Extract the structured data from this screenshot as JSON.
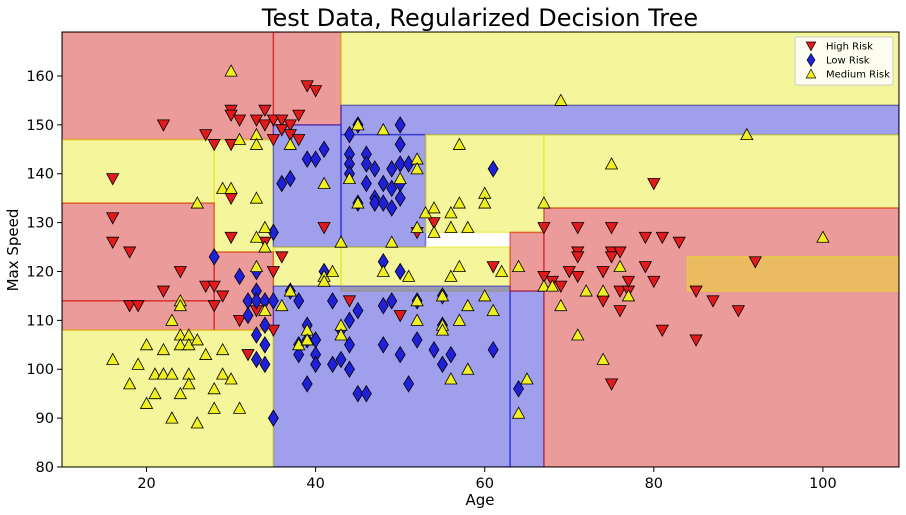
{
  "chart_data": {
    "type": "scatter",
    "title": "Test Data, Regularized Decision Tree",
    "xlabel": "Age",
    "ylabel": "Max Speed",
    "xlim": [
      10,
      109
    ],
    "ylim": [
      80,
      169
    ],
    "xticks": [
      20,
      40,
      60,
      80,
      100
    ],
    "yticks": [
      80,
      90,
      100,
      110,
      120,
      130,
      140,
      150,
      160
    ],
    "grid": false,
    "legend": {
      "position": "top-right"
    },
    "regions": [
      {
        "class": "High Risk",
        "x": [
          10,
          35
        ],
        "y": [
          147,
          169
        ]
      },
      {
        "class": "High Risk",
        "x": [
          35,
          43
        ],
        "y": [
          150,
          169
        ]
      },
      {
        "class": "Medium Risk",
        "x": [
          43,
          109
        ],
        "y": [
          154,
          169
        ]
      },
      {
        "class": "Low Risk",
        "x": [
          43,
          109
        ],
        "y": [
          148,
          154
        ]
      },
      {
        "class": "Medium Risk",
        "x": [
          10,
          28
        ],
        "y": [
          134,
          147
        ]
      },
      {
        "class": "Medium Risk",
        "x": [
          28,
          35
        ],
        "y": [
          124,
          147
        ]
      },
      {
        "class": "High Risk",
        "x": [
          10,
          28
        ],
        "y": [
          114,
          134
        ]
      },
      {
        "class": "Low Risk",
        "x": [
          35,
          43
        ],
        "y": [
          125,
          150
        ]
      },
      {
        "class": "Low Risk",
        "x": [
          43,
          53
        ],
        "y": [
          125,
          148
        ]
      },
      {
        "class": "Medium Risk",
        "x": [
          53,
          67
        ],
        "y": [
          128,
          148
        ]
      },
      {
        "class": "Medium Risk",
        "x": [
          67,
          109
        ],
        "y": [
          133,
          148
        ]
      },
      {
        "class": "Medium Risk",
        "x": [
          43,
          63
        ],
        "y": [
          116,
          125
        ]
      },
      {
        "class": "Medium Risk",
        "x": [
          35,
          43
        ],
        "y": [
          117,
          125
        ]
      },
      {
        "class": "High Risk",
        "x": [
          28,
          35
        ],
        "y": [
          108,
          124
        ]
      },
      {
        "class": "High Risk",
        "x": [
          10,
          28
        ],
        "y": [
          108,
          114
        ]
      },
      {
        "class": "Low Risk",
        "x": [
          35,
          63
        ],
        "y": [
          80,
          117
        ]
      },
      {
        "class": "Low Risk",
        "x": [
          63,
          67
        ],
        "y": [
          80,
          116
        ]
      },
      {
        "class": "High Risk",
        "x": [
          63,
          67
        ],
        "y": [
          116,
          128
        ]
      },
      {
        "class": "High Risk",
        "x": [
          67,
          109
        ],
        "y": [
          80,
          133
        ]
      },
      {
        "class": "Medium Risk",
        "x": [
          84,
          109
        ],
        "y": [
          116,
          123
        ]
      },
      {
        "class": "Medium Risk",
        "x": [
          10,
          35
        ],
        "y": [
          80,
          108
        ]
      }
    ],
    "series": [
      {
        "name": "High Risk",
        "marker": "triangle-down",
        "color": "#e31a1c",
        "points": [
          [
            16,
            139
          ],
          [
            16,
            131
          ],
          [
            16,
            126
          ],
          [
            18,
            124
          ],
          [
            18,
            113
          ],
          [
            19,
            113
          ],
          [
            22,
            150
          ],
          [
            22,
            116
          ],
          [
            24,
            120
          ],
          [
            27,
            148
          ],
          [
            27,
            117
          ],
          [
            28,
            117
          ],
          [
            28,
            146
          ],
          [
            28,
            113
          ],
          [
            29,
            115
          ],
          [
            30,
            153
          ],
          [
            30,
            152
          ],
          [
            30,
            146
          ],
          [
            30,
            135
          ],
          [
            30,
            127
          ],
          [
            31,
            151
          ],
          [
            31,
            110
          ],
          [
            32,
            103
          ],
          [
            33,
            151
          ],
          [
            33,
            112
          ],
          [
            34,
            153
          ],
          [
            34,
            150
          ],
          [
            34,
            126
          ],
          [
            35,
            151
          ],
          [
            35,
            147
          ],
          [
            35,
            120
          ],
          [
            35,
            108
          ],
          [
            36,
            151
          ],
          [
            36,
            149
          ],
          [
            36,
            123
          ],
          [
            37,
            150
          ],
          [
            37,
            148
          ],
          [
            38,
            147
          ],
          [
            38,
            152
          ],
          [
            39,
            158
          ],
          [
            40,
            157
          ],
          [
            41,
            129
          ],
          [
            44,
            114
          ],
          [
            50,
            111
          ],
          [
            52,
            128
          ],
          [
            54,
            130
          ],
          [
            61,
            121
          ],
          [
            67,
            129
          ],
          [
            67,
            119
          ],
          [
            68,
            118
          ],
          [
            69,
            117
          ],
          [
            70,
            120
          ],
          [
            71,
            129
          ],
          [
            71,
            124
          ],
          [
            71,
            123
          ],
          [
            71,
            119
          ],
          [
            74,
            114
          ],
          [
            74,
            120
          ],
          [
            75,
            129
          ],
          [
            75,
            124
          ],
          [
            75,
            123
          ],
          [
            75,
            97
          ],
          [
            76,
            124
          ],
          [
            76,
            116
          ],
          [
            76,
            112
          ],
          [
            77,
            116
          ],
          [
            77,
            118
          ],
          [
            79,
            127
          ],
          [
            79,
            121
          ],
          [
            80,
            138
          ],
          [
            80,
            118
          ],
          [
            81,
            127
          ],
          [
            81,
            108
          ],
          [
            83,
            126
          ],
          [
            85,
            116
          ],
          [
            85,
            106
          ],
          [
            87,
            114
          ],
          [
            90,
            112
          ],
          [
            92,
            122
          ]
        ]
      },
      {
        "name": "Low Risk",
        "marker": "diamond",
        "color": "#2020d8",
        "points": [
          [
            28,
            123
          ],
          [
            31,
            119
          ],
          [
            32,
            114
          ],
          [
            32,
            111
          ],
          [
            33,
            120
          ],
          [
            33,
            116
          ],
          [
            33,
            114
          ],
          [
            33,
            107
          ],
          [
            33,
            102
          ],
          [
            34,
            114
          ],
          [
            34,
            109
          ],
          [
            34,
            105
          ],
          [
            34,
            101
          ],
          [
            35,
            128
          ],
          [
            35,
            114
          ],
          [
            35,
            90
          ],
          [
            36,
            138
          ],
          [
            37,
            139
          ],
          [
            37,
            116
          ],
          [
            38,
            114
          ],
          [
            38,
            105
          ],
          [
            38,
            103
          ],
          [
            39,
            143
          ],
          [
            39,
            109
          ],
          [
            39,
            106
          ],
          [
            39,
            97
          ],
          [
            40,
            143
          ],
          [
            40,
            106
          ],
          [
            40,
            103
          ],
          [
            40,
            101
          ],
          [
            41,
            145
          ],
          [
            41,
            120
          ],
          [
            42,
            114
          ],
          [
            42,
            101
          ],
          [
            43,
            108
          ],
          [
            43,
            102
          ],
          [
            44,
            148
          ],
          [
            44,
            144
          ],
          [
            44,
            142
          ],
          [
            44,
            140
          ],
          [
            44,
            110
          ],
          [
            44,
            105
          ],
          [
            44,
            100
          ],
          [
            45,
            150
          ],
          [
            45,
            134
          ],
          [
            45,
            112
          ],
          [
            45,
            95
          ],
          [
            46,
            144
          ],
          [
            46,
            142
          ],
          [
            46,
            138
          ],
          [
            46,
            95
          ],
          [
            47,
            141
          ],
          [
            47,
            135
          ],
          [
            47,
            134
          ],
          [
            48,
            138
          ],
          [
            48,
            134
          ],
          [
            48,
            122
          ],
          [
            48,
            113
          ],
          [
            48,
            105
          ],
          [
            49,
            141
          ],
          [
            49,
            137
          ],
          [
            49,
            133
          ],
          [
            49,
            114
          ],
          [
            50,
            150
          ],
          [
            50,
            146
          ],
          [
            50,
            142
          ],
          [
            50,
            138
          ],
          [
            50,
            135
          ],
          [
            50,
            120
          ],
          [
            50,
            103
          ],
          [
            51,
            142
          ],
          [
            51,
            97
          ],
          [
            52,
            114
          ],
          [
            52,
            106
          ],
          [
            54,
            104
          ],
          [
            55,
            115
          ],
          [
            55,
            109
          ],
          [
            55,
            101
          ],
          [
            56,
            103
          ],
          [
            61,
            141
          ],
          [
            61,
            104
          ],
          [
            64,
            96
          ]
        ]
      },
      {
        "name": "Medium Risk",
        "marker": "triangle-up",
        "color": "#f0f020",
        "points": [
          [
            16,
            102
          ],
          [
            18,
            97
          ],
          [
            19,
            101
          ],
          [
            20,
            105
          ],
          [
            20,
            93
          ],
          [
            21,
            99
          ],
          [
            21,
            95
          ],
          [
            22,
            104
          ],
          [
            22,
            99
          ],
          [
            22,
            99
          ],
          [
            23,
            110
          ],
          [
            23,
            99
          ],
          [
            23,
            90
          ],
          [
            24,
            114
          ],
          [
            24,
            113
          ],
          [
            24,
            107
          ],
          [
            24,
            105
          ],
          [
            24,
            95
          ],
          [
            25,
            107
          ],
          [
            25,
            105
          ],
          [
            25,
            99
          ],
          [
            25,
            97
          ],
          [
            26,
            134
          ],
          [
            26,
            106
          ],
          [
            26,
            89
          ],
          [
            27,
            103
          ],
          [
            28,
            96
          ],
          [
            28,
            92
          ],
          [
            29,
            104
          ],
          [
            29,
            99
          ],
          [
            29,
            137
          ],
          [
            30,
            161
          ],
          [
            30,
            137
          ],
          [
            30,
            98
          ],
          [
            31,
            92
          ],
          [
            31,
            147
          ],
          [
            33,
            148
          ],
          [
            33,
            146
          ],
          [
            33,
            135
          ],
          [
            33,
            127
          ],
          [
            33,
            121
          ],
          [
            34,
            129
          ],
          [
            34,
            125
          ],
          [
            34,
            112
          ],
          [
            36,
            113
          ],
          [
            37,
            146
          ],
          [
            37,
            116
          ],
          [
            38,
            105
          ],
          [
            39,
            108
          ],
          [
            39,
            106
          ],
          [
            41,
            119
          ],
          [
            41,
            118
          ],
          [
            41,
            138
          ],
          [
            42,
            120
          ],
          [
            43,
            126
          ],
          [
            43,
            109
          ],
          [
            43,
            107
          ],
          [
            44,
            139
          ],
          [
            45,
            150
          ],
          [
            45,
            134
          ],
          [
            48,
            120
          ],
          [
            48,
            149
          ],
          [
            49,
            126
          ],
          [
            50,
            139
          ],
          [
            51,
            119
          ],
          [
            52,
            129
          ],
          [
            52,
            143
          ],
          [
            52,
            110
          ],
          [
            52,
            141
          ],
          [
            52,
            114
          ],
          [
            53,
            132
          ],
          [
            54,
            133
          ],
          [
            54,
            128
          ],
          [
            55,
            109
          ],
          [
            55,
            108
          ],
          [
            55,
            115
          ],
          [
            56,
            129
          ],
          [
            56,
            132
          ],
          [
            56,
            119
          ],
          [
            56,
            98
          ],
          [
            57,
            146
          ],
          [
            57,
            134
          ],
          [
            57,
            121
          ],
          [
            57,
            110
          ],
          [
            58,
            129
          ],
          [
            58,
            113
          ],
          [
            58,
            100
          ],
          [
            60,
            115
          ],
          [
            60,
            136
          ],
          [
            60,
            134
          ],
          [
            61,
            112
          ],
          [
            62,
            120
          ],
          [
            64,
            121
          ],
          [
            64,
            91
          ],
          [
            65,
            98
          ],
          [
            67,
            134
          ],
          [
            67,
            117
          ],
          [
            68,
            117
          ],
          [
            69,
            155
          ],
          [
            69,
            113
          ],
          [
            71,
            107
          ],
          [
            72,
            116
          ],
          [
            74,
            116
          ],
          [
            74,
            102
          ],
          [
            75,
            142
          ],
          [
            76,
            121
          ],
          [
            77,
            115
          ],
          [
            91,
            148
          ],
          [
            100,
            127
          ]
        ]
      }
    ],
    "colors": {
      "High Risk": "#d11010",
      "Low Risk": "#1a1ad0",
      "Medium Risk": "#e8e810"
    }
  }
}
